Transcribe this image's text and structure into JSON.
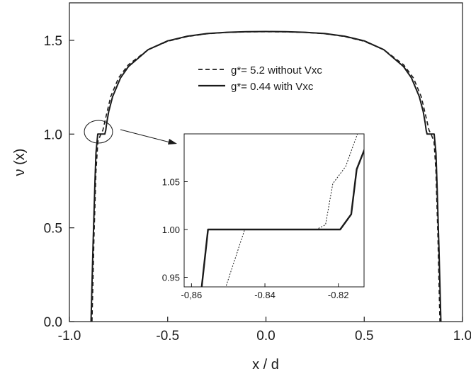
{
  "chart_data": [
    {
      "type": "line",
      "xlabel": "x / d",
      "ylabel": "ν (x)",
      "xlim": [
        -1.0,
        1.0
      ],
      "ylim": [
        0.0,
        1.7
      ],
      "xticks": [
        "-1.0",
        "-0.5",
        "0.0",
        "0.5",
        "1.0"
      ],
      "yticks": [
        "0.0",
        "0.5",
        "1.0",
        "1.5"
      ],
      "legend_placement": "top-center",
      "series": [
        {
          "name": "g*= 5.2 without Vxc",
          "style": "dashed",
          "x": [
            -0.885,
            -0.875,
            -0.865,
            -0.855,
            -0.84,
            -0.83,
            -0.81,
            -0.79,
            -0.75,
            -0.7,
            -0.6,
            -0.5,
            -0.4,
            -0.3,
            -0.2,
            -0.1,
            0.0,
            0.1,
            0.2,
            0.3,
            0.4,
            0.5,
            0.6,
            0.7,
            0.75,
            0.79,
            0.81,
            0.83,
            0.84,
            0.855,
            0.865,
            0.875,
            0.885
          ],
          "y": [
            0.0,
            0.45,
            0.8,
            0.96,
            1.0,
            1.02,
            1.11,
            1.2,
            1.3,
            1.37,
            1.45,
            1.495,
            1.52,
            1.535,
            1.542,
            1.545,
            1.546,
            1.545,
            1.542,
            1.535,
            1.52,
            1.495,
            1.45,
            1.37,
            1.3,
            1.2,
            1.11,
            1.02,
            1.0,
            0.96,
            0.8,
            0.45,
            0.0
          ]
        },
        {
          "name": "g*= 0.44 with Vxc",
          "style": "solid",
          "x": [
            -0.89,
            -0.88,
            -0.87,
            -0.865,
            -0.856,
            -0.82,
            -0.815,
            -0.81,
            -0.8,
            -0.78,
            -0.74,
            -0.7,
            -0.6,
            -0.5,
            -0.4,
            -0.3,
            -0.2,
            -0.1,
            0.0,
            0.1,
            0.2,
            0.3,
            0.4,
            0.5,
            0.6,
            0.7,
            0.74,
            0.78,
            0.8,
            0.81,
            0.815,
            0.82,
            0.856,
            0.865,
            0.87,
            0.88,
            0.89
          ],
          "y": [
            0.0,
            0.4,
            0.75,
            0.9,
            1.0,
            1.0,
            1.02,
            1.06,
            1.12,
            1.2,
            1.3,
            1.36,
            1.45,
            1.497,
            1.522,
            1.536,
            1.543,
            1.546,
            1.547,
            1.546,
            1.543,
            1.536,
            1.522,
            1.497,
            1.45,
            1.36,
            1.3,
            1.2,
            1.12,
            1.06,
            1.02,
            1.0,
            1.0,
            0.9,
            0.75,
            0.4,
            0.0
          ]
        }
      ]
    },
    {
      "type": "line",
      "xlim": [
        -0.862,
        -0.813
      ],
      "ylim": [
        0.94,
        1.1
      ],
      "xticks": [
        "-0,86",
        "-0.84",
        "-0.82"
      ],
      "yticks": [
        "0.95",
        "1.00",
        "1.05"
      ],
      "series": [
        {
          "name": "g*= 5.2 without Vxc",
          "style": "dotted",
          "x": [
            -0.8515,
            -0.8455,
            -0.826,
            -0.8235,
            -0.8215,
            -0.818,
            -0.8148
          ],
          "y": [
            0.93,
            1.0,
            1.0,
            1.005,
            1.048,
            1.066,
            1.1
          ]
        },
        {
          "name": "g*= 0.44 with Vxc",
          "style": "solid",
          "x": [
            -0.8575,
            -0.8555,
            -0.8195,
            -0.8165,
            -0.815,
            -0.8105
          ],
          "y": [
            0.93,
            1.0,
            1.0,
            1.016,
            1.063,
            1.107
          ]
        }
      ]
    }
  ]
}
